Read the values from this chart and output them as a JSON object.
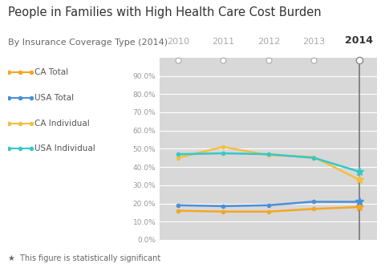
{
  "title": "People in Families with High Health Care Cost Burden",
  "subtitle": "By Insurance Coverage Type (2014)",
  "years": [
    2010,
    2011,
    2012,
    2013,
    2014
  ],
  "series": [
    {
      "label": "CA Total",
      "color": "#f5a623",
      "values": [
        16.0,
        15.5,
        15.5,
        17.0,
        18.0
      ]
    },
    {
      "label": "USA Total",
      "color": "#4a90d9",
      "values": [
        19.0,
        18.5,
        19.0,
        21.0,
        21.0
      ]
    },
    {
      "label": "CA Individual",
      "color": "#f0c040",
      "values": [
        45.0,
        51.0,
        46.5,
        45.5,
        33.0
      ]
    },
    {
      "label": "USA Individual",
      "color": "#36c8c8",
      "values": [
        47.0,
        47.5,
        47.0,
        45.0,
        37.5
      ]
    }
  ],
  "highlight_year": 2014,
  "ylim": [
    0,
    100
  ],
  "yticks": [
    0,
    10,
    20,
    30,
    40,
    50,
    60,
    70,
    80,
    90
  ],
  "ytick_labels": [
    "0.0%",
    "10.0%",
    "20.0%",
    "30.0%",
    "40.0%",
    "50.0%",
    "60.0%",
    "70.0%",
    "80.0%",
    "90.0%"
  ],
  "bg_color": "#d8d8d8",
  "outer_bg": "#ffffff",
  "title_color": "#333333",
  "subtitle_color": "#666666",
  "footnote": "★  This figure is statistically significant",
  "open_circle_years": [
    2010,
    2011,
    2012,
    2013,
    2014
  ]
}
